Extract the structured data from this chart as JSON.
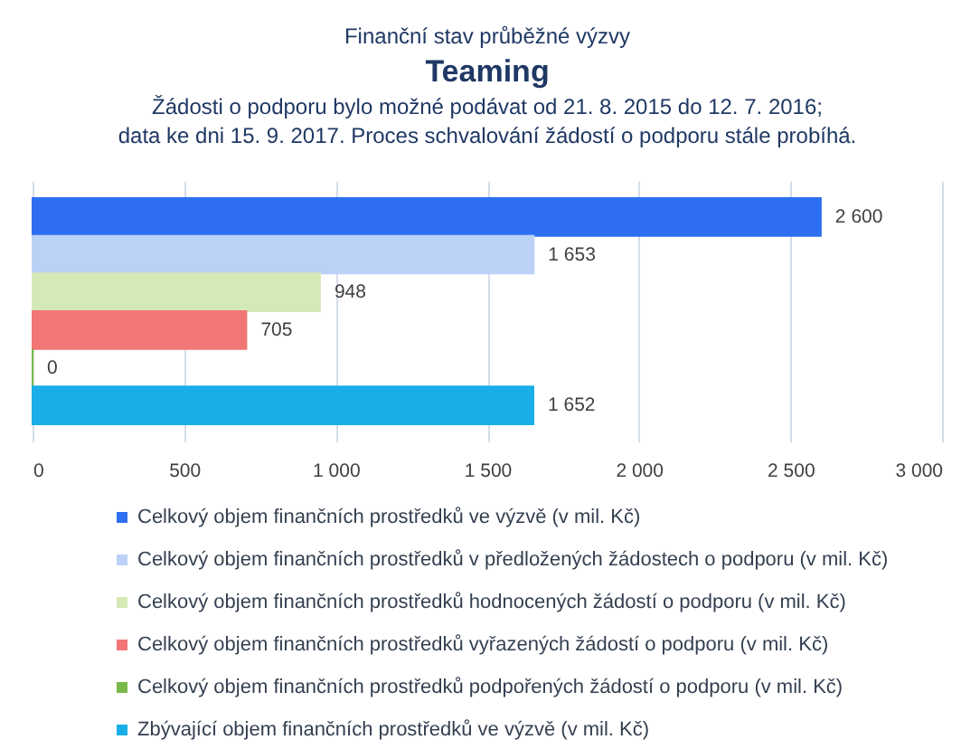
{
  "chart_data": {
    "type": "bar",
    "orientation": "horizontal",
    "annotations": [
      "Finanční stav průběžné výzvy"
    ],
    "title": "Teaming",
    "subtitle": "Žádosti o podporu bylo možné  podávat od 21. 8. 2015 do 12. 7. 2016;\ndata ke dni 15. 9. 2017. Proces schvalování žádostí o podporu stále probíhá.",
    "categories": [
      null
    ],
    "series": [
      {
        "name": "Celkový objem finančních prostředků ve výzvě (v mil. Kč)",
        "color": "#2e6ff2",
        "values": [
          2600
        ],
        "value_labels": [
          "2 600"
        ]
      },
      {
        "name": "Celkový objem finančních prostředků v předložených žádostech o podporu (v mil. Kč)",
        "color": "#bcd1f6",
        "values": [
          1653
        ],
        "value_labels": [
          "1 653"
        ]
      },
      {
        "name": "Celkový objem finančních prostředků hodnocených žádostí o podporu (v mil. Kč)",
        "color": "#d4e9b6",
        "values": [
          948
        ],
        "value_labels": [
          "948"
        ]
      },
      {
        "name": "Celkový objem finančních prostředků vyřazených žádostí o podporu (v mil. Kč)",
        "color": "#f27676",
        "values": [
          705
        ],
        "value_labels": [
          "705"
        ]
      },
      {
        "name": "Celkový objem finančních prostředků podpořených žádostí o podporu (v mil. Kč)",
        "color": "#79b84a",
        "values": [
          0
        ],
        "value_labels": [
          "0"
        ]
      },
      {
        "name": "Zbývající objem finančních prostředků ve výzvě (v mil. Kč)",
        "color": "#19aee8",
        "values": [
          1652
        ],
        "value_labels": [
          "1 652"
        ]
      }
    ],
    "xlim": [
      0,
      3000
    ],
    "xticks": [
      0,
      500,
      {
        "value": 1000,
        "label": "1 000"
      },
      {
        "value": 1500,
        "label": "1 500"
      },
      {
        "value": 2000,
        "label": "2 000"
      },
      {
        "value": 2500,
        "label": "2 500"
      },
      {
        "value": 3000,
        "label": "3 000"
      }
    ],
    "grid": "x",
    "legend": "bottom"
  }
}
